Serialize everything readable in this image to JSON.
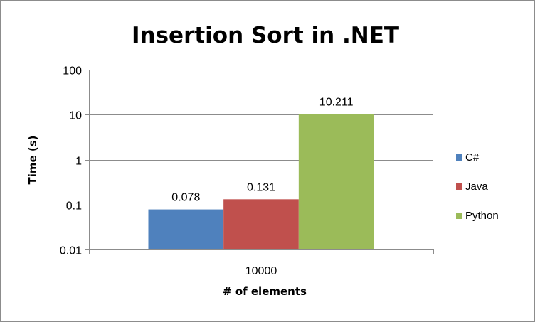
{
  "chart_data": {
    "type": "bar",
    "title": "Insertion Sort in .NET",
    "xlabel": "# of elements",
    "ylabel": "Time (s)",
    "y_scale": "log",
    "ylim": [
      0.01,
      100
    ],
    "y_ticks": [
      "100",
      "10",
      "1",
      "0.1",
      "0.01"
    ],
    "y_tick_values": [
      100,
      10,
      1,
      0.1,
      0.01
    ],
    "grid": true,
    "legend_position": "right",
    "categories": [
      "10000"
    ],
    "series": [
      {
        "name": "C#",
        "values": [
          0.078
        ],
        "label": "0.078",
        "color": "#4f81bd"
      },
      {
        "name": "Java",
        "values": [
          0.131
        ],
        "label": "0.131",
        "color": "#c0504d"
      },
      {
        "name": "Python",
        "values": [
          10.211
        ],
        "label": "10.211",
        "color": "#9bbb59"
      }
    ]
  }
}
